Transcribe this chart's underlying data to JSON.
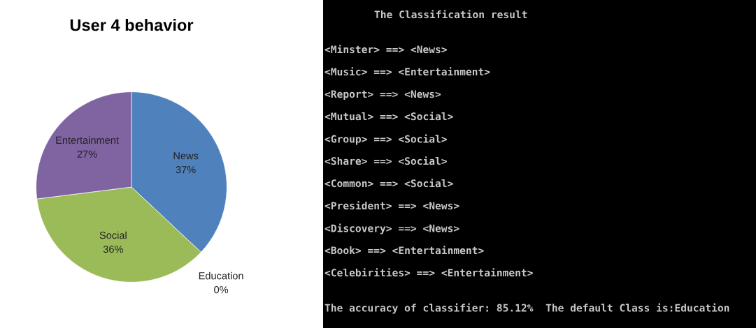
{
  "chart_data": [
    {
      "type": "pie",
      "title": "User 4 behavior",
      "categories": [
        "News",
        "Education",
        "Social",
        "Entertainment"
      ],
      "values": [
        37,
        0,
        36,
        27
      ],
      "value_labels": [
        "37%",
        "0%",
        "36%",
        "27%"
      ],
      "colors": [
        "#4f81bd",
        "#c0504d",
        "#9bbb59",
        "#8064a2"
      ]
    },
    {
      "type": "other",
      "title": "The Classification result",
      "annotations": [
        "<Minster> ==> <News>",
        "<Music> ==> <Entertainment>",
        "<Report> ==> <News>",
        "<Mutual> ==> <Social>",
        "<Group> ==> <Social>",
        "<Share> ==> <Social>",
        "<Common> ==> <Social>",
        "<President> ==> <News>",
        "<Discovery> ==> <News>",
        "<Book> ==> <Entertainment>",
        "<Celebirities> ==> <Entertainment>",
        "The accuracy of classifier: 85.12%  The default Class is:Education"
      ]
    }
  ]
}
